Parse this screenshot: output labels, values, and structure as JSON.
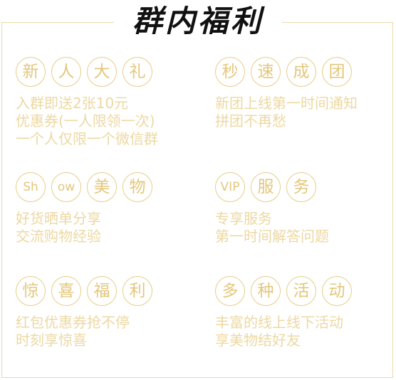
{
  "title": "群内福利",
  "sections": [
    {
      "chars": [
        "新",
        "人",
        "大",
        "礼"
      ],
      "lines": [
        "入群即送2张10元",
        "优惠券(一人限领一次)",
        "一个人仅限一个微信群"
      ]
    },
    {
      "chars": [
        "秒",
        "速",
        "成",
        "团"
      ],
      "lines": [
        "新团上线第一时间通知",
        "拼团不再愁"
      ]
    },
    {
      "chars": [
        "Sh",
        "ow",
        "美",
        "物"
      ],
      "lines": [
        "好货晒单分享",
        "交流购物经验"
      ]
    },
    {
      "chars": [
        "VIP",
        "服",
        "务"
      ],
      "lines": [
        "专享服务",
        "第一时间解答问题"
      ]
    },
    {
      "chars": [
        "惊",
        "喜",
        "福",
        "利"
      ],
      "lines": [
        "红包优惠券抢不停",
        "时刻享惊喜"
      ]
    },
    {
      "chars": [
        "多",
        "种",
        "活",
        "动"
      ],
      "lines": [
        "丰富的线上线下活动",
        "享美物结好友"
      ]
    }
  ],
  "colors": {
    "gold": "#e4c77c",
    "light_gold": "#ecd8a2",
    "border": "#e9d9a8"
  }
}
